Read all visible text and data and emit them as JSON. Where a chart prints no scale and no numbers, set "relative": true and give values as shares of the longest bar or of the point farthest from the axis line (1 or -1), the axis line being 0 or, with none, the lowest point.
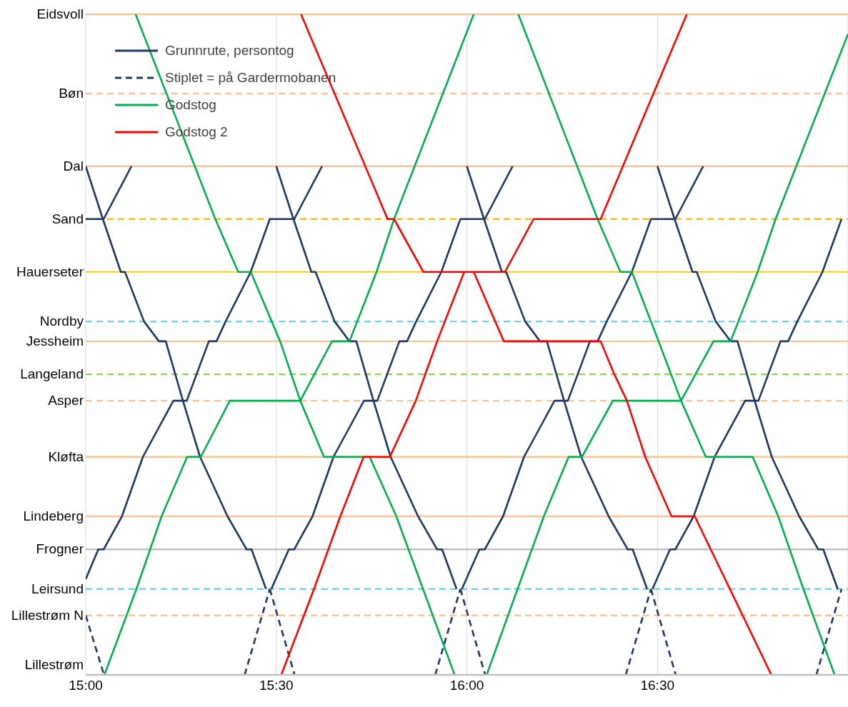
{
  "chart_data": {
    "type": "line",
    "relative": true,
    "xlim": [
      15,
      17
    ],
    "xticks": [
      {
        "value": 15,
        "label": "15:00"
      },
      {
        "value": 15.5,
        "label": "15:30"
      },
      {
        "value": 16,
        "label": "16:00"
      },
      {
        "value": 16.5,
        "label": "16:30"
      }
    ],
    "grid": "x",
    "legend": "top left",
    "ref_lines": [
      {
        "axis": "y",
        "value": 1,
        "label": "Eidsvoll",
        "color": "#f8c49c",
        "line_style": "solid"
      },
      {
        "axis": "y",
        "value": 0.88,
        "label": "Bøn",
        "color": "#f8c49c",
        "line_style": "dashed"
      },
      {
        "axis": "y",
        "value": 0.77,
        "label": "Dal",
        "color": "#f8c49c",
        "line_style": "solid"
      },
      {
        "axis": "y",
        "value": 0.69,
        "label": "Sand",
        "color": "#ffc000",
        "line_style": "dashed"
      },
      {
        "axis": "y",
        "value": 0.61,
        "label": "Hauerseter",
        "color": "#ffc000",
        "line_style": "solid"
      },
      {
        "axis": "y",
        "value": 0.535,
        "label": "Nordby",
        "color": "#66d9e8",
        "line_style": "dashed"
      },
      {
        "axis": "y",
        "value": 0.505,
        "label": "Jessheim",
        "color": "#f8c49c",
        "line_style": "solid"
      },
      {
        "axis": "y",
        "value": 0.455,
        "label": "Langeland",
        "color": "#92d050",
        "line_style": "dashed"
      },
      {
        "axis": "y",
        "value": 0.415,
        "label": "Asper",
        "color": "#f8c49c",
        "line_style": "dashed"
      },
      {
        "axis": "y",
        "value": 0.33,
        "label": "Kløfta",
        "color": "#f8c49c",
        "line_style": "solid"
      },
      {
        "axis": "y",
        "value": 0.24,
        "label": "Lindeberg",
        "color": "#f8c49c",
        "line_style": "solid"
      },
      {
        "axis": "y",
        "value": 0.19,
        "label": "Frogner",
        "color": "#bfbfbf",
        "line_style": "solid"
      },
      {
        "axis": "y",
        "value": 0.13,
        "label": "Leirsund",
        "color": "#66d9e8",
        "line_style": "dashed"
      },
      {
        "axis": "y",
        "value": 0.09,
        "label": "Lillestrøm N",
        "color": "#f8c49c",
        "line_style": "dashed"
      }
    ],
    "annotations": [
      "Lillestrøm"
    ],
    "series": [
      {
        "name": "Grunnrute, persontog",
        "color": "#1f3864",
        "line_style": "solid",
        "x": [
          15,
          15.047,
          15.12,
          null,
          15,
          15.033,
          15.047,
          15.095,
          15.15,
          15.23,
          15.265,
          15.323,
          15.343,
          15.367,
          15.433,
          15.483,
          15.547,
          15.62,
          null,
          15,
          15.045,
          15.092,
          15.103,
          15.153,
          15.192,
          15.21,
          15.255,
          15.3,
          15.372,
          15.422,
          15.435,
          15.473,
          null,
          15.487,
          15.533,
          15.547,
          15.595,
          15.65,
          15.73,
          15.765,
          15.823,
          15.843,
          15.867,
          15.933,
          15.983,
          16.047,
          16.12,
          null,
          15.5,
          15.545,
          15.592,
          15.603,
          15.653,
          15.692,
          15.71,
          15.755,
          15.8,
          15.872,
          15.922,
          15.935,
          15.973,
          null,
          15.987,
          16.033,
          16.047,
          16.095,
          16.15,
          16.23,
          16.265,
          16.323,
          16.343,
          16.367,
          16.433,
          16.483,
          16.547,
          16.62,
          null,
          16,
          16.045,
          16.092,
          16.103,
          16.153,
          16.192,
          16.21,
          16.255,
          16.3,
          16.372,
          16.422,
          16.435,
          16.473,
          null,
          16.487,
          16.533,
          16.547,
          16.595,
          16.65,
          16.73,
          16.765,
          16.823,
          16.843,
          16.867,
          16.933,
          16.983,
          null,
          16.5,
          16.545,
          16.592,
          16.603,
          16.653,
          16.692,
          16.71,
          16.755,
          16.8,
          16.872,
          16.922,
          16.935,
          16.973
        ],
        "values": [
          0.69,
          0.69,
          0.77,
          null,
          0.145,
          0.19,
          0.19,
          0.24,
          0.33,
          0.415,
          0.415,
          0.505,
          0.505,
          0.535,
          0.61,
          0.69,
          0.69,
          0.77,
          null,
          0.77,
          0.69,
          0.61,
          0.61,
          0.535,
          0.505,
          0.505,
          0.415,
          0.33,
          0.24,
          0.19,
          0.19,
          0.13,
          null,
          0.13,
          0.19,
          0.19,
          0.24,
          0.33,
          0.415,
          0.415,
          0.505,
          0.505,
          0.535,
          0.61,
          0.69,
          0.69,
          0.77,
          null,
          0.77,
          0.69,
          0.61,
          0.61,
          0.535,
          0.505,
          0.505,
          0.415,
          0.33,
          0.24,
          0.19,
          0.19,
          0.13,
          null,
          0.13,
          0.19,
          0.19,
          0.24,
          0.33,
          0.415,
          0.415,
          0.505,
          0.505,
          0.535,
          0.61,
          0.69,
          0.69,
          0.77,
          null,
          0.77,
          0.69,
          0.61,
          0.61,
          0.535,
          0.505,
          0.505,
          0.415,
          0.33,
          0.24,
          0.19,
          0.19,
          0.13,
          null,
          0.13,
          0.19,
          0.19,
          0.24,
          0.33,
          0.415,
          0.415,
          0.505,
          0.505,
          0.535,
          0.61,
          0.69,
          null,
          0.77,
          0.69,
          0.61,
          0.61,
          0.535,
          0.505,
          0.505,
          0.415,
          0.33,
          0.24,
          0.19,
          0.19,
          0.13
        ]
      },
      {
        "name": "Stiplet = på Gardermobanen",
        "color": "#1f3864",
        "line_style": "dashed",
        "x": [
          15,
          15.048,
          null,
          15.417,
          15.483,
          null,
          15.483,
          15.548,
          null,
          15.917,
          15.983,
          null,
          15.983,
          16.048,
          null,
          16.417,
          16.483,
          null,
          16.483,
          16.548,
          null,
          16.917,
          16.983
        ],
        "values": [
          0.09,
          0,
          null,
          0,
          0.13,
          null,
          0.13,
          0,
          null,
          0,
          0.13,
          null,
          0.13,
          0,
          null,
          0,
          0.13,
          null,
          0.13,
          0,
          null,
          0,
          0.13
        ]
      },
      {
        "name": "Godstog",
        "color": "#00b050",
        "line_style": "solid",
        "x": [
          15.131,
          15.34,
          15.4,
          15.433,
          15.51,
          15.563,
          15.625,
          15.745,
          15.815,
          15.885,
          15.968,
          null,
          15.049,
          15.133,
          15.199,
          15.266,
          15.302,
          15.378,
          15.563,
          15.646,
          15.692,
          15.763,
          15.809,
          16.018,
          null,
          16.135,
          16.343,
          16.403,
          16.433,
          16.503,
          16.562,
          16.627,
          16.75,
          16.817,
          16.883,
          16.965,
          null,
          16.052,
          16.133,
          16.202,
          16.267,
          16.302,
          16.383,
          16.562,
          16.647,
          16.692,
          16.763,
          16.81,
          17
        ],
        "values": [
          1,
          0.69,
          0.61,
          0.61,
          0.505,
          0.415,
          0.33,
          0.33,
          0.24,
          0.13,
          0,
          null,
          0,
          0.13,
          0.24,
          0.33,
          0.33,
          0.415,
          0.415,
          0.505,
          0.505,
          0.61,
          0.69,
          1,
          null,
          1,
          0.69,
          0.61,
          0.61,
          0.505,
          0.415,
          0.33,
          0.33,
          0.24,
          0.13,
          0,
          null,
          0,
          0.13,
          0.24,
          0.33,
          0.33,
          0.415,
          0.415,
          0.505,
          0.505,
          0.61,
          0.69,
          0.97
        ]
      },
      {
        "name": "Godstog 2",
        "color": "#ff0000",
        "line_style": "solid",
        "x": [
          15.513,
          15.599,
          15.668,
          15.729,
          15.798,
          15.866,
          15.922,
          15.993,
          16.1,
          16.175,
          16.351,
          16.577,
          null,
          15.565,
          15.792,
          15.809,
          15.886,
          16.018,
          16.097,
          16.351,
          16.387,
          16.42,
          16.468,
          16.537,
          16.598,
          16.799
        ],
        "values": [
          0,
          0.13,
          0.24,
          0.33,
          0.33,
          0.415,
          0.505,
          0.61,
          0.61,
          0.69,
          0.69,
          1,
          null,
          1,
          0.69,
          0.69,
          0.61,
          0.61,
          0.505,
          0.505,
          0.455,
          0.415,
          0.33,
          0.24,
          0.24,
          0
        ]
      }
    ]
  }
}
